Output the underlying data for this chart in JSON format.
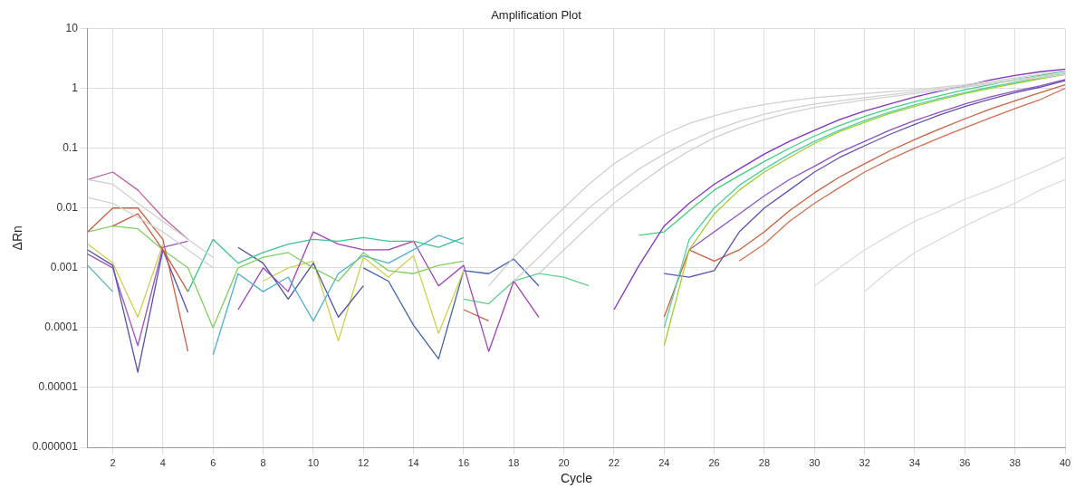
{
  "chart_data": {
    "type": "line",
    "title": "Amplification Plot",
    "xlabel": "Cycle",
    "ylabel": "ΔRn",
    "xlim": [
      1,
      40
    ],
    "xticks": [
      2,
      4,
      6,
      8,
      10,
      12,
      14,
      16,
      18,
      20,
      22,
      24,
      26,
      28,
      30,
      32,
      34,
      36,
      38,
      40
    ],
    "ylim": [
      1e-06,
      10
    ],
    "yticks": [
      {
        "value": 1e-06,
        "label": "0.000001"
      },
      {
        "value": 1e-05,
        "label": "0.00001"
      },
      0.0001,
      0.001,
      0.01,
      0.1,
      1,
      10
    ],
    "log": "y",
    "grid": true,
    "legend": false,
    "marker": "none",
    "line_style": "solid",
    "series": [
      {
        "color": "#d0d0d0",
        "x": [
          1,
          2,
          3,
          4,
          5,
          6
        ],
        "values": [
          0.03,
          0.025,
          0.012,
          0.006,
          0.003,
          0.0015
        ]
      },
      {
        "color": "#d0d0d0",
        "x": [
          1,
          2,
          3,
          4,
          5,
          6
        ],
        "values": [
          0.015,
          0.012,
          0.007,
          0.004,
          0.002,
          0.001
        ]
      },
      {
        "color": "#d0d0d0",
        "x": [
          17,
          18,
          19,
          20,
          21,
          22,
          23,
          24,
          25,
          26,
          27,
          28,
          29,
          30,
          32,
          34,
          36,
          38,
          40
        ],
        "values": [
          0.0005,
          0.0015,
          0.004,
          0.01,
          0.025,
          0.055,
          0.1,
          0.17,
          0.26,
          0.35,
          0.45,
          0.54,
          0.62,
          0.7,
          0.82,
          0.95,
          1.15,
          1.5,
          2
        ]
      },
      {
        "color": "#d0d0d0",
        "x": [
          18,
          19,
          20,
          21,
          22,
          23,
          24,
          25,
          26,
          27,
          28,
          29,
          30,
          32,
          34,
          36,
          38,
          40
        ],
        "values": [
          0.0006,
          0.0015,
          0.004,
          0.01,
          0.022,
          0.045,
          0.08,
          0.13,
          0.2,
          0.28,
          0.37,
          0.46,
          0.55,
          0.7,
          0.88,
          1.1,
          1.4,
          1.8
        ]
      },
      {
        "color": "#d0d0d0",
        "x": [
          19,
          20,
          21,
          22,
          23,
          24,
          25,
          26,
          27,
          28,
          29,
          30,
          32,
          34,
          36,
          38,
          40
        ],
        "values": [
          0.0008,
          0.002,
          0.005,
          0.012,
          0.025,
          0.05,
          0.09,
          0.15,
          0.22,
          0.3,
          0.39,
          0.48,
          0.64,
          0.82,
          1.05,
          1.35,
          1.7
        ]
      },
      {
        "color": "#dcdcdc",
        "x": [
          30,
          31,
          32,
          33,
          34,
          35,
          36,
          37,
          38,
          39,
          40
        ],
        "values": [
          0.0005,
          0.001,
          0.002,
          0.0035,
          0.006,
          0.009,
          0.014,
          0.02,
          0.03,
          0.045,
          0.07
        ]
      },
      {
        "color": "#dcdcdc",
        "x": [
          32,
          33,
          34,
          35,
          36,
          37,
          38,
          39,
          40
        ],
        "values": [
          0.0004,
          0.0009,
          0.0018,
          0.003,
          0.005,
          0.008,
          0.012,
          0.02,
          0.03
        ]
      },
      {
        "color": "#c060a0",
        "x": [
          1,
          2,
          3,
          4,
          5
        ],
        "values": [
          0.03,
          0.04,
          0.02,
          0.007,
          0.003
        ]
      },
      {
        "color": "#c86040",
        "x": [
          1,
          2,
          3,
          4,
          5
        ],
        "values": [
          0.004,
          0.01,
          0.01,
          0.003,
          4e-05
        ]
      },
      {
        "color": "#c86040",
        "x": [
          2,
          3,
          4,
          5
        ],
        "values": [
          0.005,
          0.008,
          0.002,
          0.0004
        ]
      },
      {
        "color": "#5050b0",
        "x": [
          1,
          2,
          3,
          4,
          5
        ],
        "values": [
          0.002,
          0.0011,
          1.8e-05,
          0.002,
          0.00018
        ]
      },
      {
        "color": "#a050c0",
        "x": [
          1,
          2,
          3,
          4,
          5
        ],
        "values": [
          0.0017,
          0.001,
          5e-05,
          0.0022,
          0.0028
        ]
      },
      {
        "color": "#d0d050",
        "x": [
          1,
          2,
          3,
          4
        ],
        "values": [
          0.0025,
          0.0012,
          0.00015,
          0.0025
        ]
      },
      {
        "color": "#50b0c0",
        "x": [
          1,
          2
        ],
        "values": [
          0.0011,
          0.0004
        ]
      },
      {
        "color": "#80d060",
        "x": [
          1,
          2,
          3,
          4,
          5,
          6,
          7,
          8,
          9,
          10,
          11,
          12,
          13,
          14,
          15,
          16
        ],
        "values": [
          0.004,
          0.005,
          0.0045,
          0.002,
          0.001,
          0.0001,
          0.001,
          0.0015,
          0.0018,
          0.001,
          0.0006,
          0.0018,
          0.0009,
          0.0008,
          0.0011,
          0.0013
        ]
      },
      {
        "color": "#40c090",
        "x": [
          5,
          6,
          7,
          8,
          9,
          10,
          11,
          12,
          13,
          14,
          15,
          16
        ],
        "values": [
          0.0004,
          0.003,
          0.0012,
          0.0018,
          0.0025,
          0.003,
          0.0028,
          0.0032,
          0.0028,
          0.0028,
          0.0022,
          0.0032
        ]
      },
      {
        "color": "#50b0d0",
        "x": [
          6,
          7,
          8,
          9,
          10,
          11,
          12,
          13,
          14,
          15,
          16
        ],
        "values": [
          3.5e-05,
          0.0008,
          0.0004,
          0.0007,
          0.00013,
          0.0008,
          0.0016,
          0.0012,
          0.002,
          0.0035,
          0.0025
        ]
      },
      {
        "color": "#5050a0",
        "x": [
          7,
          8,
          9,
          10,
          11,
          12
        ],
        "values": [
          0.0022,
          0.0012,
          0.0003,
          0.0012,
          0.00015,
          0.0005
        ]
      },
      {
        "color": "#a040b0",
        "x": [
          7,
          8,
          9,
          10,
          11,
          12,
          13,
          14,
          15,
          16,
          17,
          18,
          19
        ],
        "values": [
          0.0002,
          0.001,
          0.0004,
          0.004,
          0.0025,
          0.002,
          0.002,
          0.0028,
          0.0005,
          0.0011,
          4e-05,
          0.0006,
          0.00015
        ]
      },
      {
        "color": "#d0d050",
        "x": [
          8,
          9,
          10,
          11,
          12,
          13,
          14,
          15,
          16
        ],
        "values": [
          0.0006,
          0.001,
          0.0013,
          6e-05,
          0.0015,
          0.0007,
          0.0016,
          8e-05,
          0.0009
        ]
      },
      {
        "color": "#4060b0",
        "x": [
          12,
          13,
          14,
          15,
          16,
          17,
          18,
          19
        ],
        "values": [
          0.001,
          0.0006,
          0.00011,
          3e-05,
          0.0009,
          0.0008,
          0.0014,
          0.0005
        ]
      },
      {
        "color": "#60d090",
        "x": [
          16,
          17,
          18,
          19,
          20,
          21
        ],
        "values": [
          0.0003,
          0.00025,
          0.0006,
          0.0008,
          0.0007,
          0.0005
        ]
      },
      {
        "color": "#c86040",
        "x": [
          16,
          17
        ],
        "values": [
          0.0002,
          0.00013
        ]
      },
      {
        "color": "#8030c0",
        "x": [
          22,
          23,
          24,
          25,
          26,
          27,
          28,
          29,
          30,
          31,
          32,
          33,
          34,
          35,
          36,
          37,
          38,
          39,
          40
        ],
        "values": [
          0.0002,
          0.0011,
          0.005,
          0.012,
          0.025,
          0.045,
          0.08,
          0.13,
          0.2,
          0.3,
          0.42,
          0.55,
          0.72,
          0.9,
          1.1,
          1.38,
          1.65,
          1.9,
          2.1
        ]
      },
      {
        "color": "#40d080",
        "x": [
          23,
          24,
          25,
          26,
          27,
          28,
          29,
          30,
          31,
          32,
          33,
          34,
          35,
          36,
          37,
          38,
          39,
          40
        ],
        "values": [
          0.0035,
          0.004,
          0.009,
          0.02,
          0.035,
          0.06,
          0.1,
          0.16,
          0.24,
          0.34,
          0.46,
          0.6,
          0.76,
          0.95,
          1.15,
          1.4,
          1.65,
          1.95
        ]
      },
      {
        "color": "#a0d030",
        "x": [
          24,
          25,
          26,
          27,
          28,
          29,
          30,
          31,
          32,
          33,
          34,
          35,
          36,
          37,
          38,
          39,
          40
        ],
        "values": [
          5e-05,
          0.002,
          0.008,
          0.02,
          0.04,
          0.07,
          0.12,
          0.19,
          0.27,
          0.38,
          0.5,
          0.65,
          0.82,
          1.0,
          1.2,
          1.45,
          1.7
        ]
      },
      {
        "color": "#50d0a0",
        "x": [
          24,
          25,
          26,
          27,
          28,
          29,
          30,
          31,
          32,
          33,
          34,
          35,
          36,
          37,
          38,
          39,
          40
        ],
        "values": [
          0.0001,
          0.003,
          0.01,
          0.024,
          0.045,
          0.08,
          0.13,
          0.2,
          0.29,
          0.4,
          0.53,
          0.68,
          0.85,
          1.05,
          1.25,
          1.5,
          1.8
        ]
      },
      {
        "color": "#6050b0",
        "x": [
          24,
          25,
          26,
          27,
          28,
          29,
          30,
          31,
          32,
          33,
          34,
          35,
          36,
          37,
          38,
          39,
          40
        ],
        "values": [
          0.0008,
          0.0007,
          0.0009,
          0.004,
          0.01,
          0.02,
          0.04,
          0.07,
          0.11,
          0.17,
          0.25,
          0.36,
          0.5,
          0.66,
          0.85,
          1.05,
          1.35
        ]
      },
      {
        "color": "#9050c0",
        "x": [
          25,
          26,
          27,
          28,
          29,
          30,
          31,
          32,
          33,
          34,
          35,
          36,
          37,
          38,
          39,
          40
        ],
        "values": [
          0.002,
          0.004,
          0.008,
          0.016,
          0.03,
          0.05,
          0.085,
          0.13,
          0.2,
          0.29,
          0.4,
          0.55,
          0.72,
          0.9,
          1.1,
          1.4
        ]
      },
      {
        "color": "#c86040",
        "x": [
          24,
          25,
          26,
          27,
          28,
          29,
          30,
          31,
          32,
          33,
          34,
          35,
          36,
          37,
          38,
          39,
          40
        ],
        "values": [
          0.00015,
          0.002,
          0.0013,
          0.002,
          0.004,
          0.009,
          0.018,
          0.033,
          0.055,
          0.09,
          0.14,
          0.21,
          0.31,
          0.45,
          0.62,
          0.85,
          1.15
        ]
      },
      {
        "color": "#d07050",
        "x": [
          27,
          28,
          29,
          30,
          31,
          32,
          33,
          34,
          35,
          36,
          37,
          38,
          39,
          40
        ],
        "values": [
          0.0013,
          0.0025,
          0.006,
          0.012,
          0.022,
          0.04,
          0.065,
          0.1,
          0.15,
          0.22,
          0.32,
          0.46,
          0.65,
          1.0
        ]
      }
    ]
  }
}
